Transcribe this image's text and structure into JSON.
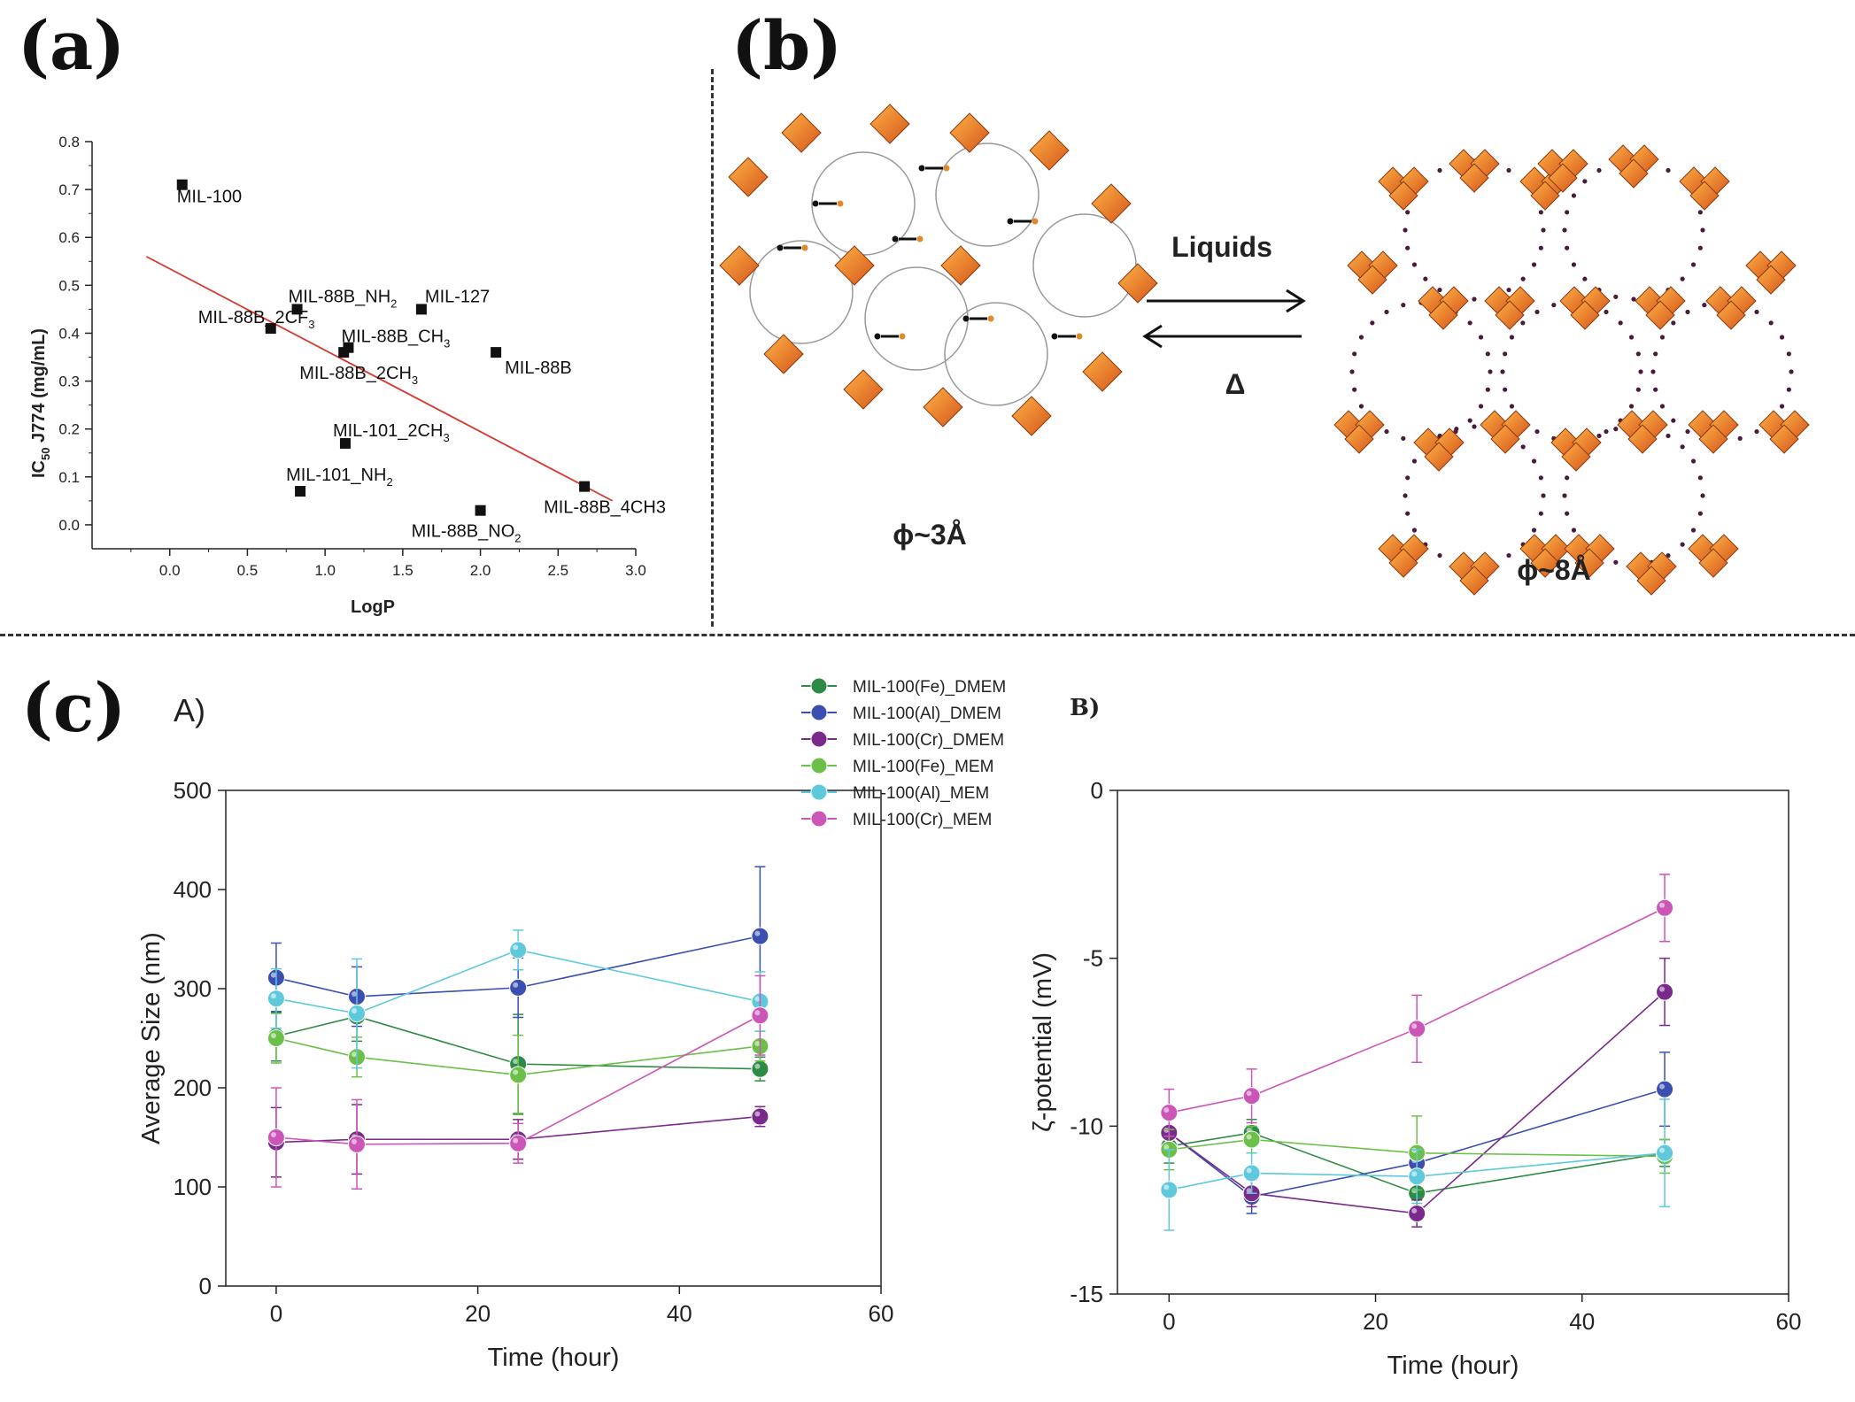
{
  "panels": {
    "a_label": "(a)",
    "b_label": "(b)",
    "c_label": "(c)",
    "c_sub_a": "A)",
    "c_sub_b": "B)"
  },
  "chart_data": [
    {
      "id": "a",
      "type": "scatter",
      "title": "",
      "xlabel": "LogP",
      "ylabel_main": "IC",
      "ylabel_sub": "50",
      "ylabel_rest": " J774 (mg/mL)",
      "xlim": [
        -0.5,
        3.0
      ],
      "ylim": [
        -0.05,
        0.8
      ],
      "xticks": [
        "0.0",
        "0.5",
        "1.0",
        "1.5",
        "2.0",
        "2.5",
        "3.0"
      ],
      "yticks": [
        "0.0",
        "0.1",
        "0.2",
        "0.3",
        "0.4",
        "0.5",
        "0.6",
        "0.7",
        "0.8"
      ],
      "points": [
        {
          "x": 0.08,
          "y": 0.71,
          "label": "MIL-100",
          "sub": ""
        },
        {
          "x": 0.82,
          "y": 0.45,
          "label": "MIL-88B_NH",
          "sub": "2"
        },
        {
          "x": 1.62,
          "y": 0.45,
          "label": "MIL-127",
          "sub": ""
        },
        {
          "x": 0.65,
          "y": 0.41,
          "label": "MIL-88B_2CF",
          "sub": "3"
        },
        {
          "x": 1.15,
          "y": 0.37,
          "label": "MIL-88B_CH",
          "sub": "3"
        },
        {
          "x": 1.12,
          "y": 0.36,
          "label": "MIL-88B_2CH",
          "sub": "3"
        },
        {
          "x": 2.1,
          "y": 0.36,
          "label": "MIL-88B",
          "sub": ""
        },
        {
          "x": 1.13,
          "y": 0.17,
          "label": "MIL-101_2CH",
          "sub": "3"
        },
        {
          "x": 0.84,
          "y": 0.07,
          "label": "MIL-101_NH",
          "sub": "2"
        },
        {
          "x": 2.67,
          "y": 0.08,
          "label": "MIL-88B_4CH3",
          "sub": ""
        },
        {
          "x": 2.0,
          "y": 0.03,
          "label": "MIL-88B_NO",
          "sub": "2"
        }
      ],
      "fit_line": {
        "x": [
          -0.15,
          2.85
        ],
        "y": [
          0.56,
          0.05
        ],
        "color": "#d9382e"
      }
    },
    {
      "id": "b",
      "type": "diagram",
      "arrow_top_label": "Liquids",
      "arrow_bottom_label": "Δ",
      "left_caption": "ϕ~3Å",
      "right_caption": "ϕ~8Å"
    },
    {
      "id": "cA",
      "type": "line",
      "xlabel": "Time (hour)",
      "ylabel": "Average Size (nm)",
      "xlim": [
        -5,
        60
      ],
      "ylim": [
        0,
        500
      ],
      "xticks": [
        "0",
        "20",
        "40",
        "60"
      ],
      "yticks": [
        "0",
        "100",
        "200",
        "300",
        "400",
        "500"
      ],
      "x": [
        0,
        8,
        24,
        48
      ],
      "series": [
        {
          "name": "MIL-100(Fe)_DMEM",
          "color": "#2e8b45",
          "values": [
            252,
            272,
            224,
            219
          ],
          "err": [
            25,
            25,
            50,
            12
          ]
        },
        {
          "name": "MIL-100(Al)_DMEM",
          "color": "#3a4fb0",
          "values": [
            311,
            292,
            301,
            353
          ],
          "err": [
            35,
            30,
            30,
            70
          ]
        },
        {
          "name": "MIL-100(Cr)_DMEM",
          "color": "#7a2a8a",
          "values": [
            145,
            148,
            148,
            171
          ],
          "err": [
            35,
            35,
            20,
            10
          ]
        },
        {
          "name": "MIL-100(Fe)_MEM",
          "color": "#6cc04a",
          "values": [
            250,
            231,
            213,
            242
          ],
          "err": [
            25,
            20,
            40,
            15
          ]
        },
        {
          "name": "MIL-100(Al)_MEM",
          "color": "#5fc9dc",
          "values": [
            290,
            275,
            339,
            287
          ],
          "err": [
            30,
            55,
            20,
            30
          ]
        },
        {
          "name": "MIL-100(Cr)_MEM",
          "color": "#cc55b8",
          "values": [
            150,
            143,
            144,
            273
          ],
          "err": [
            50,
            45,
            20,
            40
          ]
        }
      ]
    },
    {
      "id": "cB",
      "type": "line",
      "xlabel": "Time (hour)",
      "ylabel": "ζ-potential  (mV)",
      "xlim": [
        -5,
        60
      ],
      "ylim": [
        -15,
        0
      ],
      "xticks": [
        "0",
        "20",
        "40",
        "60"
      ],
      "yticks": [
        "0",
        "-5",
        "-10",
        "-15"
      ],
      "x": [
        0,
        8,
        24,
        48
      ],
      "series": [
        {
          "name": "MIL-100(Fe)_DMEM",
          "color": "#2e8b45",
          "values": [
            -10.6,
            -10.2,
            -12.0,
            -10.8
          ],
          "err": [
            0.5,
            0.4,
            0.4,
            0.4
          ]
        },
        {
          "name": "MIL-100(Al)_DMEM",
          "color": "#3a4fb0",
          "values": [
            -10.2,
            -12.1,
            -11.1,
            -8.9
          ],
          "err": [
            0.6,
            0.5,
            0.5,
            1.1
          ]
        },
        {
          "name": "MIL-100(Cr)_DMEM",
          "color": "#7a2a8a",
          "values": [
            -10.2,
            -12.0,
            -12.6,
            -6.0
          ],
          "err": [
            0.4,
            0.4,
            0.4,
            1.0
          ]
        },
        {
          "name": "MIL-100(Fe)_MEM",
          "color": "#6cc04a",
          "values": [
            -10.7,
            -10.4,
            -10.8,
            -10.9
          ],
          "err": [
            0.6,
            0.4,
            1.1,
            0.5
          ]
        },
        {
          "name": "MIL-100(Al)_MEM",
          "color": "#5fc9dc",
          "values": [
            -11.9,
            -11.4,
            -11.5,
            -10.8
          ],
          "err": [
            1.2,
            0.6,
            0.8,
            1.6
          ]
        },
        {
          "name": "MIL-100(Cr)_MEM",
          "color": "#cc55b8",
          "values": [
            -9.6,
            -9.1,
            -7.1,
            -3.5
          ],
          "err": [
            0.7,
            0.8,
            1.0,
            1.0
          ]
        }
      ]
    }
  ]
}
